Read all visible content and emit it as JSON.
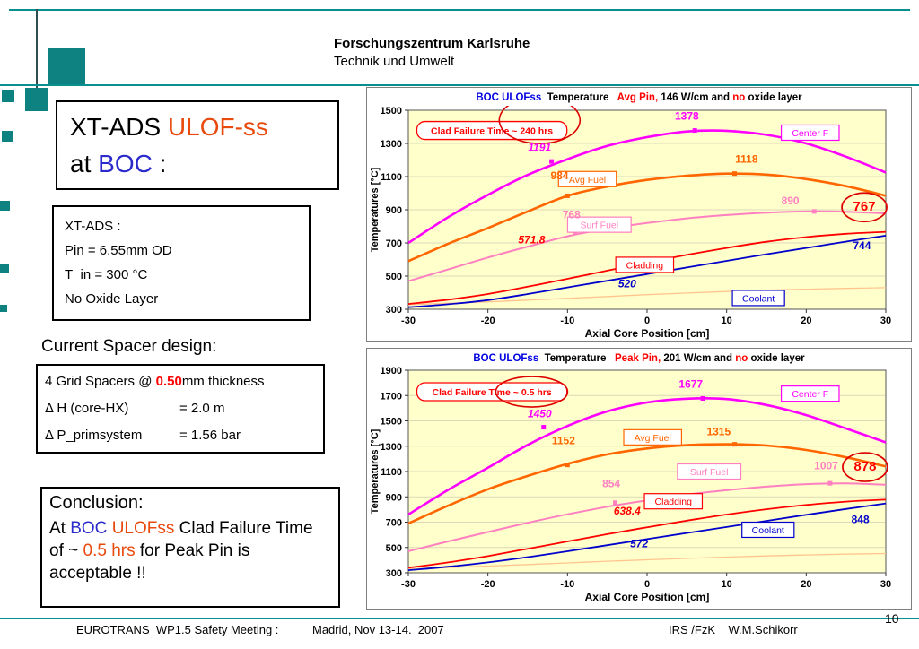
{
  "slide": {
    "header": {
      "org": "Forschungszentrum Karlsruhe",
      "dept": "Technik und Umwelt"
    },
    "page_number": "10"
  },
  "title_box": {
    "l1a": "XT-ADS ",
    "l1b": "ULOF-ss",
    "l2a": "at ",
    "l2b": "BOC",
    "l2c": " :"
  },
  "info_box": {
    "lines": [
      "XT-ADS :",
      "Pin = 6.55mm OD",
      "T_in = 300 °C",
      "No Oxide Layer"
    ]
  },
  "spacer": {
    "heading": "Current Spacer design:",
    "line1": [
      {
        "t": "4 Grid Spacers @ "
      },
      {
        "t": "0.50",
        "c": "#FF0000",
        "b": true
      },
      {
        "t": "mm thickness"
      }
    ],
    "rows": [
      {
        "label": "Δ H (core-HX)",
        "value": "= 2.0 m"
      },
      {
        "label": "Δ P_primsystem",
        "value": "= 1.56 bar"
      }
    ]
  },
  "conclusion": {
    "heading": "Conclusion:",
    "segments": [
      {
        "t": "At "
      },
      {
        "t": "BOC",
        "c": "#2B2BCC"
      },
      {
        "t": " "
      },
      {
        "t": "ULOFss",
        "c": "#E8490D"
      },
      {
        "t": " Clad Failure Time of ~ "
      },
      {
        "t": "0.5 hrs",
        "c": "#E8490D"
      },
      {
        "t": " for Peak Pin is acceptable !!"
      }
    ]
  },
  "footer": {
    "left": "EUROTRANS  WP1.5 Safety Meeting :",
    "mid": "Madrid, Nov 13-14.  2007",
    "right": "IRS /FzK    W.M.Schikorr"
  },
  "colors": {
    "teal": "#0a8f8f",
    "accent": "#E8490D",
    "blue": "#2B2BCC",
    "red": "#FF0000",
    "plot_bg": "#FFFFCC"
  },
  "chart_data": [
    {
      "type": "line",
      "title_segments": [
        {
          "t": "BOC ULOFss",
          "c": "#0000E0"
        },
        {
          "t": "  Temperature   ",
          "c": "#000000"
        },
        {
          "t": "Avg Pin,",
          "c": "#FF0000"
        },
        {
          "t": " 146 W/cm and ",
          "c": "#000000"
        },
        {
          "t": "no",
          "c": "#FF0000"
        },
        {
          "t": " oxide layer",
          "c": "#000000"
        }
      ],
      "xlabel": "Axial Core Position [cm]",
      "ylabel": "Temperatures [°C]",
      "xlim": [
        -30,
        30
      ],
      "ylim": [
        300,
        1500
      ],
      "xticks": [
        -30,
        -20,
        -10,
        0,
        10,
        20,
        30
      ],
      "yticks": [
        300,
        500,
        700,
        900,
        1100,
        1300,
        1500
      ],
      "plot_bg": "#FFFFCC",
      "grid": true,
      "legend_position": "inline-boxes",
      "x": [
        -30,
        -25,
        -20,
        -15,
        -10,
        -5,
        0,
        5,
        10,
        15,
        20,
        25,
        30
      ],
      "series": [
        {
          "name": "Unlabeled",
          "color": "#FFC58F",
          "width": 1.3,
          "values": [
            328,
            336,
            345,
            355,
            366,
            377,
            388,
            398,
            407,
            415,
            421,
            426,
            430
          ]
        },
        {
          "name": "Surf Fuel",
          "color": "#FF80C0",
          "width": 2,
          "values": [
            470,
            540,
            612,
            678,
            740,
            785,
            820,
            848,
            868,
            882,
            890,
            888,
            878
          ]
        },
        {
          "name": "Center F",
          "color": "#FF00FF",
          "width": 2.6,
          "values": [
            700,
            855,
            990,
            1110,
            1205,
            1285,
            1338,
            1372,
            1376,
            1352,
            1300,
            1220,
            1125
          ]
        },
        {
          "name": "Avg Fuel",
          "color": "#FF6600",
          "width": 2.6,
          "values": [
            590,
            695,
            790,
            890,
            984,
            1040,
            1080,
            1105,
            1118,
            1112,
            1085,
            1042,
            985
          ]
        },
        {
          "name": "Cladding",
          "color": "#FF0000",
          "width": 1.8,
          "values": [
            332,
            358,
            392,
            436,
            484,
            533,
            582,
            628,
            670,
            707,
            735,
            755,
            767
          ]
        },
        {
          "name": "Coolant",
          "color": "#0000CC",
          "width": 1.8,
          "values": [
            312,
            330,
            355,
            392,
            432,
            472,
            512,
            552,
            592,
            632,
            670,
            708,
            744
          ]
        }
      ],
      "markers": [
        {
          "x": 6,
          "y": 1378,
          "color": "#FF00FF"
        },
        {
          "x": -12,
          "y": 1191,
          "color": "#FF00FF"
        },
        {
          "x": -10,
          "y": 984,
          "color": "#FF6600"
        },
        {
          "x": 11,
          "y": 1118,
          "color": "#FF6600"
        },
        {
          "x": -9,
          "y": 768,
          "color": "#FF80C0"
        },
        {
          "x": 21,
          "y": 890,
          "color": "#FF80C0"
        }
      ],
      "legends": [
        {
          "label": "Center F",
          "color": "#FF00FF",
          "x": 20.5,
          "y": 1365
        },
        {
          "label": "Avg Fuel",
          "color": "#FF6600",
          "x": -7.5,
          "y": 1085
        },
        {
          "label": "Surf Fuel",
          "color": "#FF80C0",
          "x": -6,
          "y": 810
        },
        {
          "label": "Cladding",
          "color": "#FF0000",
          "x": -0.3,
          "y": 568
        },
        {
          "label": "Coolant",
          "color": "#0000CC",
          "x": 14,
          "y": 368
        }
      ],
      "annotations": [
        {
          "text": "1378",
          "x": 5,
          "y": 1465,
          "color": "#FF00FF"
        },
        {
          "text": "1191",
          "x": -13.5,
          "y": 1275,
          "color": "#FF00FF",
          "italic": true
        },
        {
          "text": "984",
          "x": -11,
          "y": 1105,
          "color": "#FF6600"
        },
        {
          "text": "1118",
          "x": 12.5,
          "y": 1205,
          "color": "#FF6600"
        },
        {
          "text": "890",
          "x": 18,
          "y": 955,
          "color": "#FF80C0"
        },
        {
          "text": "768",
          "x": -9.5,
          "y": 870,
          "color": "#FF80C0"
        },
        {
          "text": "571.8",
          "x": -14.5,
          "y": 720,
          "color": "#FF0000",
          "italic": true
        },
        {
          "text": "520",
          "x": -2.5,
          "y": 455,
          "color": "#0000CC",
          "italic": true
        },
        {
          "text": "744",
          "x": 27,
          "y": 685,
          "color": "#0000CC"
        },
        {
          "text": "767",
          "x": 27.3,
          "y": 915,
          "color": "#FF0000",
          "size": 15,
          "circle": true
        }
      ],
      "callout": {
        "text": "Clad Failure Time ~ 240 hrs",
        "x": -19.5,
        "y": 1378
      },
      "ellipses": [
        {
          "x": -13.5,
          "y": 1440,
          "rx": 45,
          "ry": 26
        }
      ]
    },
    {
      "type": "line",
      "title_segments": [
        {
          "t": "BOC ULOFss",
          "c": "#0000E0"
        },
        {
          "t": "  Temperature   ",
          "c": "#000000"
        },
        {
          "t": "Peak Pin,",
          "c": "#FF0000"
        },
        {
          "t": " 201 W/cm and ",
          "c": "#000000"
        },
        {
          "t": "no",
          "c": "#FF0000"
        },
        {
          "t": " oxide layer",
          "c": "#000000"
        }
      ],
      "xlabel": "Axial Core Position [cm]",
      "ylabel": "Temperatures [°C]",
      "xlim": [
        -30,
        30
      ],
      "ylim": [
        300,
        1900
      ],
      "xticks": [
        -30,
        -20,
        -10,
        0,
        10,
        20,
        30
      ],
      "yticks": [
        300,
        500,
        700,
        900,
        1100,
        1300,
        1500,
        1700,
        1900
      ],
      "plot_bg": "#FFFFCC",
      "grid": true,
      "legend_position": "inline-boxes",
      "x": [
        -30,
        -25,
        -20,
        -15,
        -10,
        -5,
        0,
        5,
        10,
        15,
        20,
        25,
        30
      ],
      "series": [
        {
          "name": "Unlabeled",
          "color": "#FFC58F",
          "width": 1.3,
          "values": [
            332,
            342,
            353,
            365,
            378,
            391,
            403,
            414,
            424,
            433,
            441,
            447,
            452
          ]
        },
        {
          "name": "Surf Fuel",
          "color": "#FF80C0",
          "width": 2,
          "values": [
            470,
            548,
            622,
            695,
            762,
            822,
            872,
            918,
            952,
            980,
            1000,
            1006,
            995
          ]
        },
        {
          "name": "Center F",
          "color": "#FF00FF",
          "width": 2.6,
          "values": [
            760,
            955,
            1130,
            1310,
            1460,
            1575,
            1645,
            1675,
            1672,
            1625,
            1545,
            1440,
            1330
          ]
        },
        {
          "name": "Avg Fuel",
          "color": "#FF6600",
          "width": 2.6,
          "values": [
            690,
            830,
            960,
            1065,
            1160,
            1235,
            1282,
            1308,
            1315,
            1305,
            1270,
            1212,
            1140
          ]
        },
        {
          "name": "Cladding",
          "color": "#FF0000",
          "width": 1.8,
          "values": [
            340,
            382,
            432,
            490,
            548,
            605,
            660,
            712,
            760,
            802,
            836,
            862,
            878
          ]
        },
        {
          "name": "Coolant",
          "color": "#0000CC",
          "width": 1.8,
          "values": [
            320,
            348,
            382,
            424,
            470,
            518,
            566,
            614,
            662,
            710,
            758,
            804,
            848
          ]
        }
      ],
      "markers": [
        {
          "x": 7,
          "y": 1677,
          "color": "#FF00FF"
        },
        {
          "x": -13,
          "y": 1450,
          "color": "#FF00FF"
        },
        {
          "x": -10,
          "y": 1152,
          "color": "#FF6600"
        },
        {
          "x": 11,
          "y": 1315,
          "color": "#FF6600"
        },
        {
          "x": -4,
          "y": 854,
          "color": "#FF80C0"
        },
        {
          "x": 23,
          "y": 1007,
          "color": "#FF80C0"
        }
      ],
      "legends": [
        {
          "label": "Center F",
          "color": "#FF00FF",
          "x": 20.5,
          "y": 1715
        },
        {
          "label": "Avg Fuel",
          "color": "#FF6600",
          "x": 0.7,
          "y": 1370
        },
        {
          "label": "Surf Fuel",
          "color": "#FF80C0",
          "x": 7.8,
          "y": 1100
        },
        {
          "label": "Cladding",
          "color": "#FF0000",
          "x": 3.3,
          "y": 865
        },
        {
          "label": "Coolant",
          "color": "#0000CC",
          "x": 15.2,
          "y": 640
        }
      ],
      "annotations": [
        {
          "text": "1677",
          "x": 5.5,
          "y": 1790,
          "color": "#FF00FF"
        },
        {
          "text": "1450",
          "x": -13.5,
          "y": 1555,
          "color": "#FF00FF",
          "italic": true
        },
        {
          "text": "1152",
          "x": -10.5,
          "y": 1345,
          "color": "#FF6600"
        },
        {
          "text": "1315",
          "x": 9,
          "y": 1415,
          "color": "#FF6600"
        },
        {
          "text": "1007",
          "x": 22.5,
          "y": 1145,
          "color": "#FF80C0"
        },
        {
          "text": "854",
          "x": -4.5,
          "y": 1005,
          "color": "#FF80C0"
        },
        {
          "text": "638.4",
          "x": -2.5,
          "y": 790,
          "color": "#FF0000",
          "italic": true
        },
        {
          "text": "572",
          "x": -1,
          "y": 530,
          "color": "#0000CC",
          "italic": true
        },
        {
          "text": "848",
          "x": 26.8,
          "y": 720,
          "color": "#0000CC"
        },
        {
          "text": "878",
          "x": 27.4,
          "y": 1135,
          "color": "#FF0000",
          "size": 15,
          "circle": true
        }
      ],
      "callout": {
        "text": "Clad Failure Time ~ 0.5 hrs",
        "x": -19.5,
        "y": 1730
      },
      "ellipses": [
        {
          "x": -14.5,
          "y": 1730,
          "rx": 40,
          "ry": 17
        }
      ]
    }
  ]
}
